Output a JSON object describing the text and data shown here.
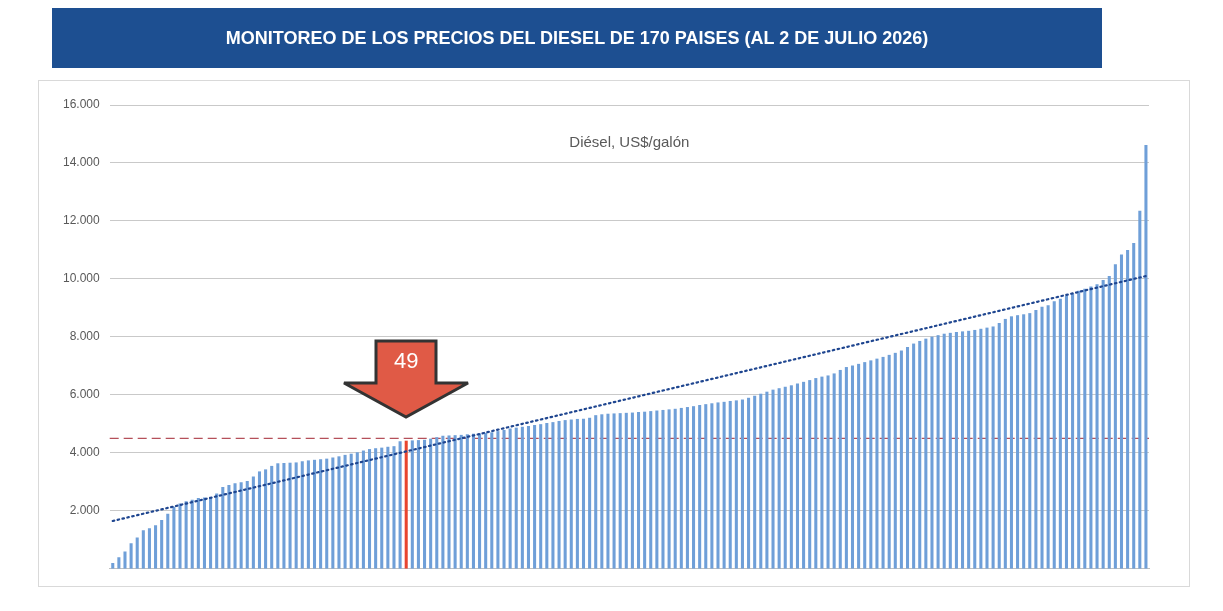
{
  "chart_data": {
    "type": "bar",
    "title": "MONITOREO DE LOS PRECIOS DEL DIESEL DE 170 PAISES (AL 2 DE JULIO 2026)",
    "subtitle": "Diésel, US$/galón",
    "categories": [
      null,
      null,
      null,
      null,
      null,
      null,
      null,
      null,
      null,
      null,
      null,
      null,
      null,
      null,
      null,
      null,
      null,
      null,
      null,
      null,
      null,
      null,
      null,
      null,
      null,
      null,
      null,
      null,
      null,
      null,
      null,
      null,
      null,
      null,
      null,
      null,
      null,
      null,
      null,
      null,
      null,
      null,
      null,
      null,
      null,
      null,
      null,
      null,
      null,
      null,
      null,
      null,
      null,
      null,
      null,
      null,
      null,
      null,
      null,
      null,
      null,
      null,
      null,
      null,
      null,
      null,
      null,
      null,
      null,
      null,
      null,
      null,
      null,
      null,
      null,
      null,
      null,
      null,
      null,
      null,
      null,
      null,
      null,
      null,
      null,
      null,
      null,
      null,
      null,
      null,
      null,
      null,
      null,
      null,
      null,
      null,
      null,
      null,
      null,
      null,
      null,
      null,
      null,
      null,
      null,
      null,
      null,
      null,
      null,
      null,
      null,
      null,
      null,
      null,
      null,
      null,
      null,
      null,
      null,
      null,
      null,
      null,
      null,
      null,
      null,
      null,
      null,
      null,
      null,
      null,
      null,
      null,
      null,
      null,
      null,
      null,
      null,
      null,
      null,
      null,
      null,
      null,
      null,
      null,
      null,
      null,
      null,
      null,
      null,
      null,
      null,
      null,
      null,
      null,
      null,
      null,
      null,
      null,
      null,
      null,
      null,
      null,
      null,
      null,
      null,
      null,
      null,
      null,
      null,
      null
    ],
    "series": [
      {
        "values": [
          0.2,
          0.4,
          0.6,
          0.88,
          1.08,
          1.33,
          1.4,
          1.5,
          1.68,
          1.9,
          2.14,
          2.25,
          2.33,
          2.38,
          2.44,
          2.46,
          2.48,
          2.6,
          2.82,
          2.89,
          2.95,
          2.99,
          3.03,
          3.18,
          3.36,
          3.43,
          3.55,
          3.64,
          3.65,
          3.66,
          3.67,
          3.71,
          3.74,
          3.76,
          3.78,
          3.8,
          3.84,
          3.88,
          3.93,
          3.97,
          4.02,
          4.08,
          4.13,
          4.16,
          4.18,
          4.21,
          4.23,
          4.4,
          4.42,
          4.43,
          4.44,
          4.45,
          4.49,
          4.54,
          4.59,
          4.6,
          4.61,
          4.62,
          4.64,
          4.66,
          4.67,
          4.69,
          4.71,
          4.75,
          4.79,
          4.84,
          4.87,
          4.9,
          4.93,
          4.96,
          4.99,
          5.03,
          5.06,
          5.1,
          5.13,
          5.15,
          5.17,
          5.18,
          5.21,
          5.3,
          5.33,
          5.35,
          5.36,
          5.37,
          5.38,
          5.39,
          5.41,
          5.42,
          5.44,
          5.46,
          5.48,
          5.5,
          5.52,
          5.55,
          5.58,
          5.61,
          5.65,
          5.68,
          5.71,
          5.74,
          5.76,
          5.79,
          5.81,
          5.84,
          5.9,
          5.97,
          6.04,
          6.11,
          6.18,
          6.23,
          6.28,
          6.33,
          6.39,
          6.45,
          6.51,
          6.58,
          6.63,
          6.67,
          6.74,
          6.86,
          6.96,
          7.01,
          7.07,
          7.13,
          7.19,
          7.25,
          7.31,
          7.38,
          7.45,
          7.53,
          7.65,
          7.77,
          7.86,
          7.94,
          8.01,
          8.06,
          8.11,
          8.14,
          8.17,
          8.19,
          8.21,
          8.24,
          8.28,
          8.32,
          8.36,
          8.48,
          8.62,
          8.71,
          8.75,
          8.78,
          8.82,
          8.93,
          9.04,
          9.09,
          9.23,
          9.32,
          9.41,
          9.5,
          9.59,
          9.66,
          9.74,
          9.82,
          9.96,
          10.1,
          10.51,
          10.84,
          11,
          11.24,
          12.35,
          14.62
        ],
        "colors": [
          "#6f9fd8",
          "#6f9fd8",
          "#6f9fd8",
          "#6f9fd8",
          "#6f9fd8",
          "#6f9fd8",
          "#6f9fd8",
          "#6f9fd8",
          "#6f9fd8",
          "#6f9fd8",
          "#6f9fd8",
          "#6f9fd8",
          "#6f9fd8",
          "#6f9fd8",
          "#6f9fd8",
          "#6f9fd8",
          "#6f9fd8",
          "#6f9fd8",
          "#6f9fd8",
          "#6f9fd8",
          "#6f9fd8",
          "#6f9fd8",
          "#6f9fd8",
          "#6f9fd8",
          "#6f9fd8",
          "#6f9fd8",
          "#6f9fd8",
          "#6f9fd8",
          "#6f9fd8",
          "#6f9fd8",
          "#6f9fd8",
          "#6f9fd8",
          "#6f9fd8",
          "#6f9fd8",
          "#6f9fd8",
          "#6f9fd8",
          "#6f9fd8",
          "#6f9fd8",
          "#6f9fd8",
          "#6f9fd8",
          "#6f9fd8",
          "#6f9fd8",
          "#6f9fd8",
          "#6f9fd8",
          "#6f9fd8",
          "#6f9fd8",
          "#6f9fd8",
          "#6f9fd8",
          "#e8452f",
          "#6f9fd8",
          "#6f9fd8",
          "#6f9fd8",
          "#6f9fd8",
          "#6f9fd8",
          "#6f9fd8",
          "#6f9fd8",
          "#6f9fd8",
          "#6f9fd8",
          "#6f9fd8",
          "#6f9fd8",
          "#6f9fd8",
          "#6f9fd8",
          "#6f9fd8",
          "#6f9fd8",
          "#6f9fd8",
          "#6f9fd8",
          "#6f9fd8",
          "#6f9fd8",
          "#6f9fd8",
          "#6f9fd8",
          "#6f9fd8",
          "#6f9fd8",
          "#6f9fd8",
          "#6f9fd8",
          "#6f9fd8",
          "#6f9fd8",
          "#6f9fd8",
          "#6f9fd8",
          "#6f9fd8",
          "#6f9fd8",
          "#6f9fd8",
          "#6f9fd8",
          "#6f9fd8",
          "#6f9fd8",
          "#6f9fd8",
          "#6f9fd8",
          "#6f9fd8",
          "#6f9fd8",
          "#6f9fd8",
          "#6f9fd8",
          "#6f9fd8",
          "#6f9fd8",
          "#6f9fd8",
          "#6f9fd8",
          "#6f9fd8",
          "#6f9fd8",
          "#6f9fd8",
          "#6f9fd8",
          "#6f9fd8",
          "#6f9fd8",
          "#6f9fd8",
          "#6f9fd8",
          "#6f9fd8",
          "#6f9fd8",
          "#6f9fd8",
          "#6f9fd8",
          "#6f9fd8",
          "#6f9fd8",
          "#6f9fd8",
          "#6f9fd8",
          "#6f9fd8",
          "#6f9fd8",
          "#6f9fd8",
          "#6f9fd8",
          "#6f9fd8",
          "#6f9fd8",
          "#6f9fd8",
          "#6f9fd8",
          "#6f9fd8",
          "#6f9fd8",
          "#6f9fd8",
          "#6f9fd8",
          "#6f9fd8",
          "#6f9fd8",
          "#6f9fd8",
          "#6f9fd8",
          "#6f9fd8",
          "#6f9fd8",
          "#6f9fd8",
          "#6f9fd8",
          "#6f9fd8",
          "#6f9fd8",
          "#6f9fd8",
          "#6f9fd8",
          "#6f9fd8",
          "#6f9fd8",
          "#6f9fd8",
          "#6f9fd8",
          "#6f9fd8",
          "#6f9fd8",
          "#6f9fd8",
          "#6f9fd8",
          "#6f9fd8",
          "#6f9fd8",
          "#6f9fd8",
          "#6f9fd8",
          "#6f9fd8",
          "#6f9fd8",
          "#6f9fd8",
          "#6f9fd8",
          "#6f9fd8",
          "#6f9fd8",
          "#6f9fd8",
          "#6f9fd8",
          "#6f9fd8",
          "#6f9fd8",
          "#6f9fd8",
          "#6f9fd8",
          "#6f9fd8",
          "#6f9fd8",
          "#6f9fd8",
          "#6f9fd8",
          "#6f9fd8",
          "#6f9fd8",
          "#6f9fd8",
          "#6f9fd8",
          "#6f9fd8",
          "#6f9fd8",
          "#6f9fd8",
          "#6f9fd8"
        ]
      },
      {
        "type": "line",
        "color": "#1f4690",
        "line_style": "dotted",
        "values": [
          1.65,
          1.7,
          1.75,
          1.8,
          1.85,
          1.9,
          1.95,
          2,
          2.05,
          2.1,
          2.15,
          2.2,
          2.25,
          2.3,
          2.35,
          2.4,
          2.45,
          2.5,
          2.55,
          2.6,
          2.65,
          2.7,
          2.75,
          2.8,
          2.85,
          2.9,
          2.95,
          3,
          3.05,
          3.1,
          3.15,
          3.2,
          3.25,
          3.3,
          3.35,
          3.4,
          3.45,
          3.5,
          3.55,
          3.6,
          3.65,
          3.7,
          3.75,
          3.8,
          3.85,
          3.9,
          3.95,
          4,
          4.05,
          4.1,
          4.15,
          4.2,
          4.25,
          4.3,
          4.35,
          4.4,
          4.45,
          4.5,
          4.55,
          4.6,
          4.65,
          4.7,
          4.75,
          4.8,
          4.85,
          4.9,
          4.95,
          5,
          5.05,
          5.1,
          5.15,
          5.2,
          5.25,
          5.3,
          5.35,
          5.4,
          5.45,
          5.5,
          5.55,
          5.6,
          5.65,
          5.7,
          5.75,
          5.8,
          5.85,
          5.9,
          5.95,
          6,
          6.05,
          6.1,
          6.15,
          6.2,
          6.25,
          6.3,
          6.35,
          6.4,
          6.45,
          6.5,
          6.55,
          6.6,
          6.65,
          6.7,
          6.75,
          6.8,
          6.85,
          6.9,
          6.95,
          7,
          7.05,
          7.1,
          7.15,
          7.2,
          7.25,
          7.3,
          7.35,
          7.4,
          7.45,
          7.5,
          7.55,
          7.6,
          7.65,
          7.7,
          7.75,
          7.8,
          7.85,
          7.9,
          7.95,
          8,
          8.05,
          8.1,
          8.15,
          8.2,
          8.25,
          8.3,
          8.35,
          8.4,
          8.45,
          8.5,
          8.55,
          8.6,
          8.65,
          8.7,
          8.75,
          8.8,
          8.85,
          8.9,
          8.95,
          9,
          9.05,
          9.1,
          9.15,
          9.2,
          9.25,
          9.3,
          9.35,
          9.4,
          9.45,
          9.5,
          9.55,
          9.6,
          9.65,
          9.7,
          9.75,
          9.8,
          9.85,
          9.9,
          9.95,
          10,
          10.05,
          10.1
        ]
      }
    ],
    "ylim": [
      0,
      16
    ],
    "yticks": [
      {
        "value": 2,
        "label": "2.000"
      },
      {
        "value": 4,
        "label": "4.000"
      },
      {
        "value": 6,
        "label": "6.000"
      },
      {
        "value": 8,
        "label": "8.000"
      },
      {
        "value": 10,
        "label": "10.000"
      },
      {
        "value": 12,
        "label": "12.000"
      },
      {
        "value": 14,
        "label": "14.000"
      },
      {
        "value": 16,
        "label": "16.000"
      }
    ],
    "grid": "y",
    "tick_labels": "y",
    "ref_lines": [
      {
        "axis": "y",
        "value": 4.5,
        "color": "#b5505a",
        "line_style": "dashed"
      }
    ],
    "annotations": [
      "49"
    ]
  }
}
